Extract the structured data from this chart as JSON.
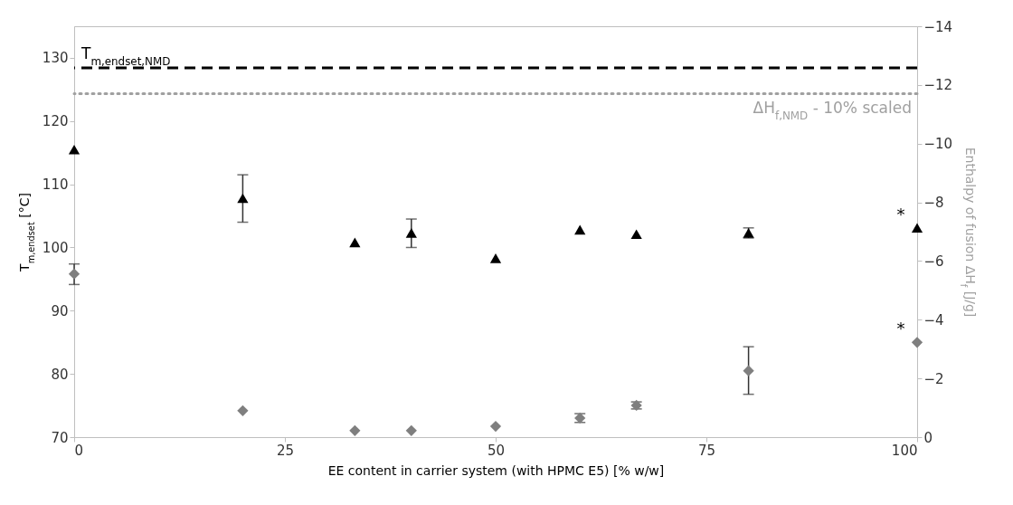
{
  "chart_data": {
    "type": "scatter",
    "xlabel": "EE content in carrier system (with HPMC E5) [% w/w]",
    "ylabel": "T$_{m,endset}$ [°C]",
    "y2label": "Enthalpy of fusion ΔH$_{f}$  [J/g]",
    "xlim": [
      0,
      100
    ],
    "xticks": [
      0,
      25,
      50,
      75,
      100
    ],
    "ylim": [
      70,
      135
    ],
    "yticks": [
      70,
      80,
      90,
      100,
      110,
      120,
      130
    ],
    "y2lim": [
      0,
      -14
    ],
    "y2ticks": [
      0,
      -2,
      -4,
      -6,
      -8,
      -10,
      -12,
      -14
    ],
    "grid": false,
    "series": [
      {
        "marker": "triangle",
        "color": "#000000",
        "x": [
          0,
          20,
          33.3,
          40,
          50,
          60,
          66.7,
          80,
          100
        ],
        "values": [
          115.5,
          107.8,
          100.8,
          102.3,
          98.3,
          102.8,
          102.1,
          102.3,
          103.1
        ],
        "errors": [
          null,
          [
            104,
            111.5
          ],
          null,
          [
            100,
            104.5
          ],
          null,
          null,
          null,
          [
            101.5,
            103.1
          ],
          null
        ]
      },
      {
        "marker": "diamond",
        "axis": "y2",
        "color": "#7f7f7f",
        "x": [
          0,
          20,
          33.3,
          40,
          50,
          60,
          66.7,
          80,
          100
        ],
        "values": [
          -5.56,
          -0.9,
          -0.22,
          -0.22,
          -0.37,
          -0.65,
          -1.08,
          -2.26,
          -3.23
        ],
        "errors": [
          [
            -5.9,
            -5.2
          ],
          null,
          null,
          null,
          null,
          [
            -0.8,
            -0.5
          ],
          [
            -1.2,
            -0.96
          ],
          [
            -3.08,
            -1.46
          ],
          null
        ]
      }
    ],
    "ref_lines": [
      {
        "axis": "y",
        "value": 128.4,
        "label": "T$_{m,endset,NMD}$",
        "color": "#000000",
        "line_style": "dashed"
      },
      {
        "axis": "y2",
        "value": -11.7,
        "label": "ΔH$_{f,NMD}$ - 10% scaled",
        "color": "#a0a0a0",
        "line_style": "dotted"
      }
    ],
    "annotations": [
      "*",
      "*"
    ]
  }
}
